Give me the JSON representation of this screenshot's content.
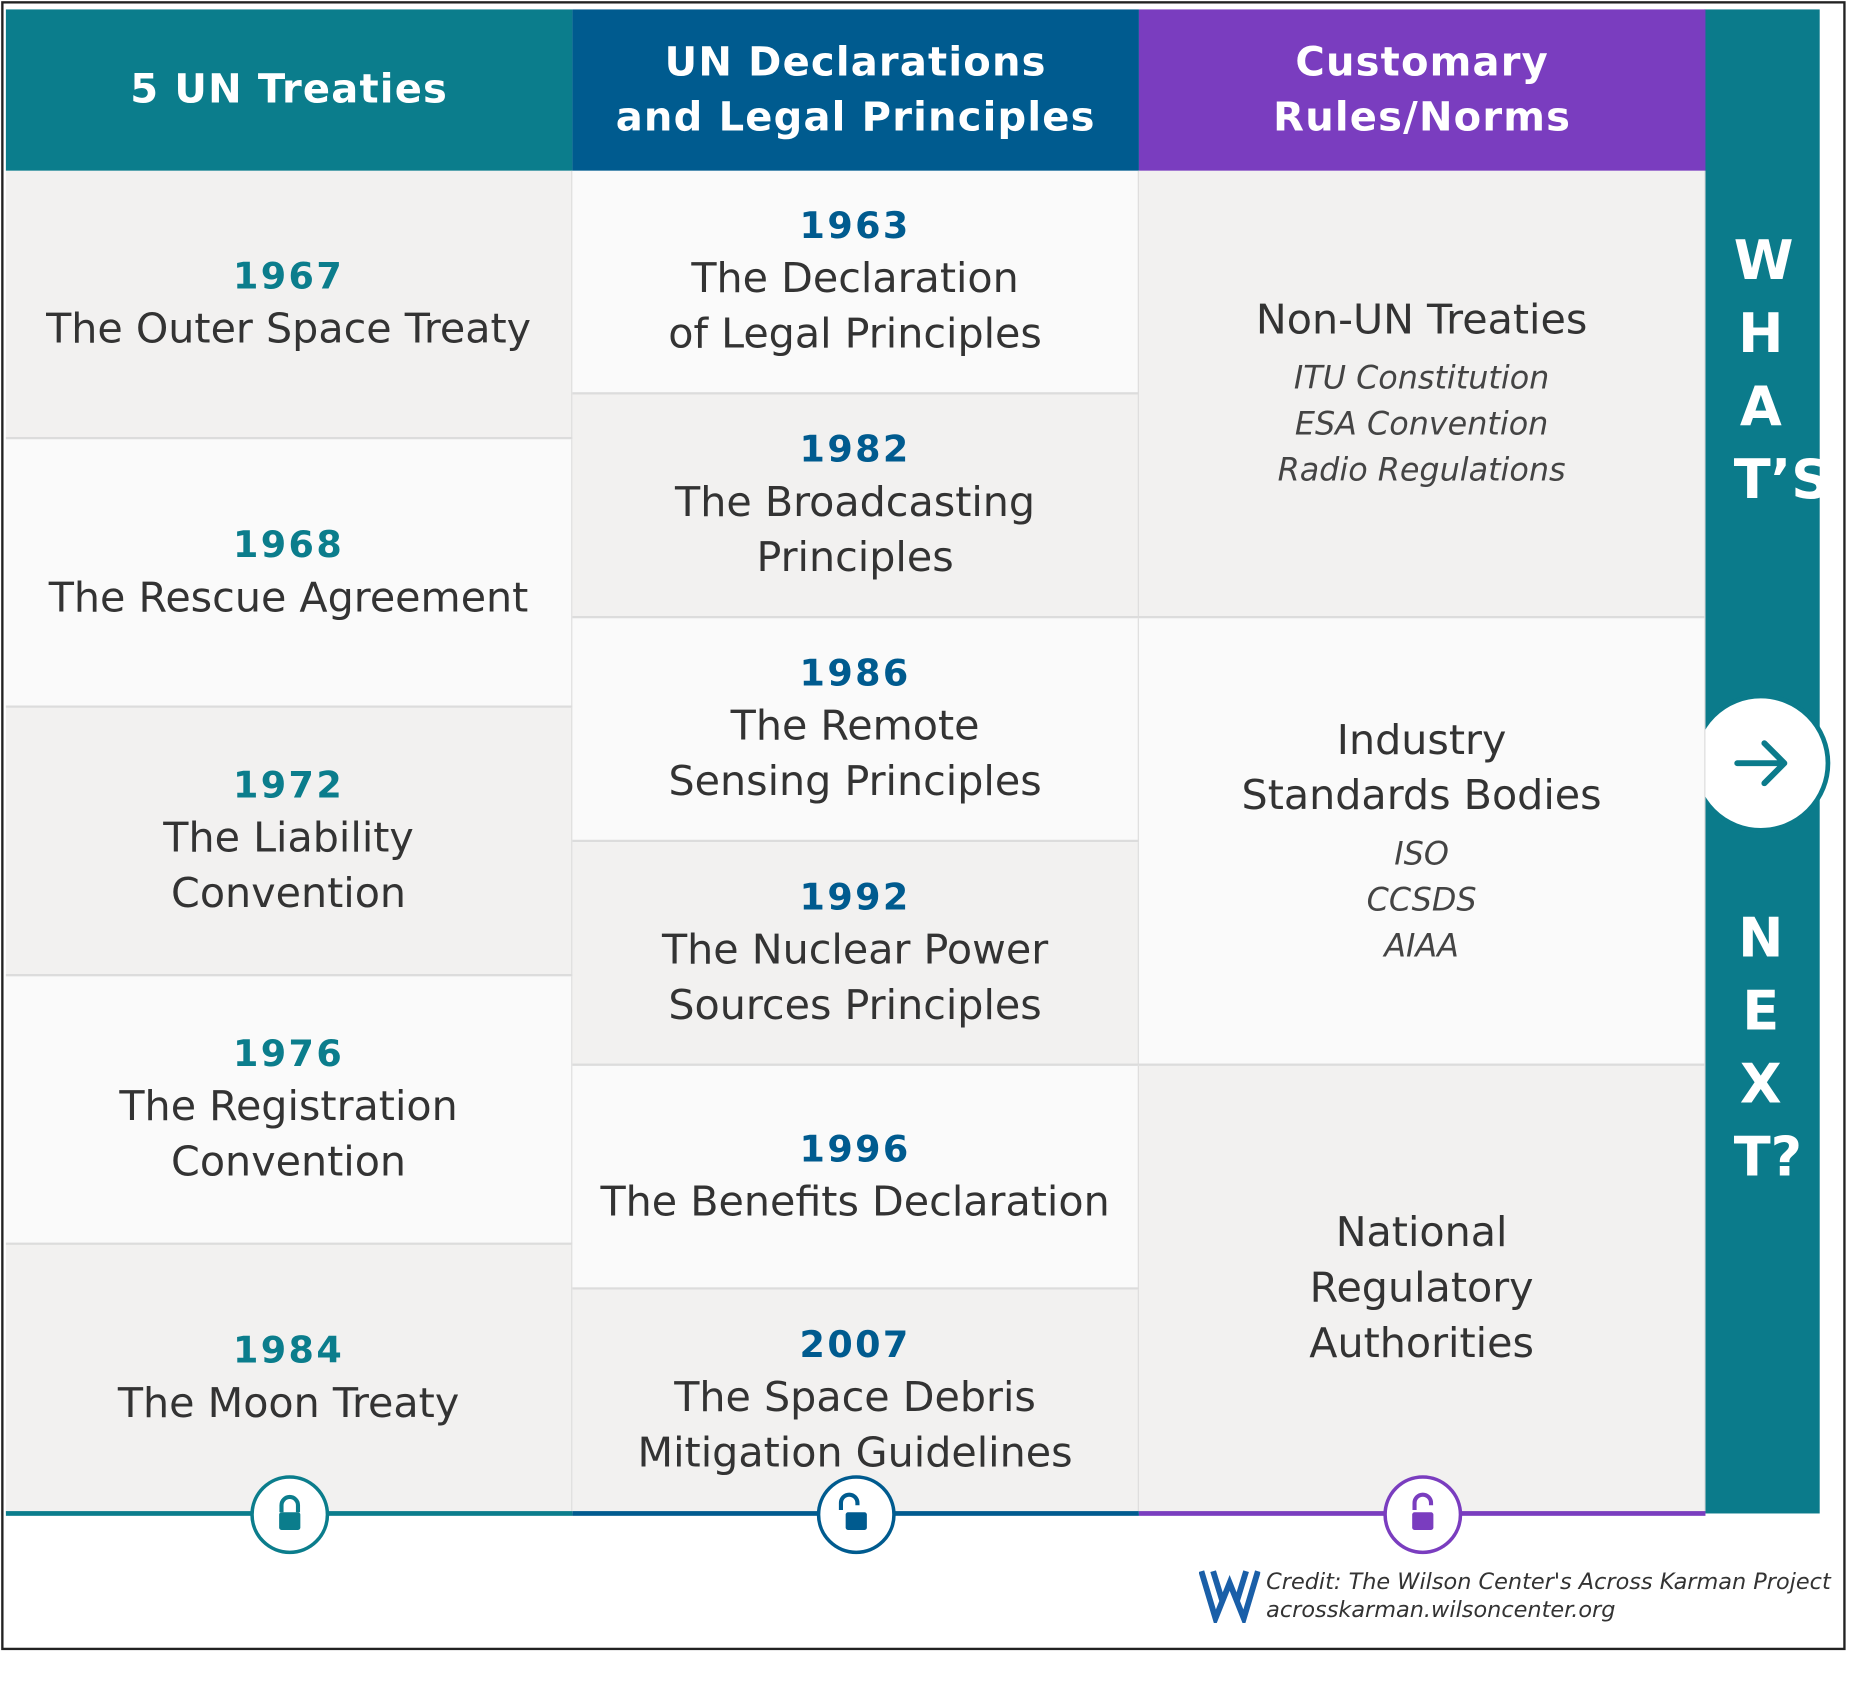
{
  "columns": [
    {
      "header": "5 UN Treaties",
      "items": [
        {
          "year": 1967,
          "title": "The Outer Space Treaty"
        },
        {
          "year": 1968,
          "title": "The Rescue Agreement"
        },
        {
          "year": 1972,
          "title": "The Liability\nConvention"
        },
        {
          "year": 1976,
          "title": "The Registration\nConvention"
        },
        {
          "year": 1984,
          "title": "The Moon Treaty"
        }
      ]
    },
    {
      "header": "UN Declarations\nand Legal Principles",
      "items": [
        {
          "year": 1963,
          "title": "The Declaration\nof Legal Principles"
        },
        {
          "year": 1982,
          "title": "The Broadcasting\nPrinciples"
        },
        {
          "year": 1986,
          "title": "The Remote\nSensing Principles"
        },
        {
          "year": 1992,
          "title": "The Nuclear Power\nSources Principles"
        },
        {
          "year": 1996,
          "title": "The Benefits Declaration"
        },
        {
          "year": 2007,
          "title": "The Space Debris\nMitigation Guidelines"
        }
      ]
    },
    {
      "header": "Customary\nRules/Norms",
      "items": [
        {
          "title": "Non-UN Treaties",
          "subitems": [
            "ITU Constitution",
            "ESA Convention",
            "Radio Regulations"
          ]
        },
        {
          "title": "Industry\nStandards Bodies",
          "subitems": [
            "ISO",
            "CCSDS",
            "AIAA"
          ]
        },
        {
          "title": "National\nRegulatory\nAuthorities"
        }
      ]
    }
  ],
  "sidebar": {
    "top": "WHAT’S",
    "bottom": "NEXT?"
  },
  "credit": {
    "line1": "Credit: The Wilson Center's Across Karman Project",
    "line2": "acrosskarman.wilsoncenter.org"
  }
}
